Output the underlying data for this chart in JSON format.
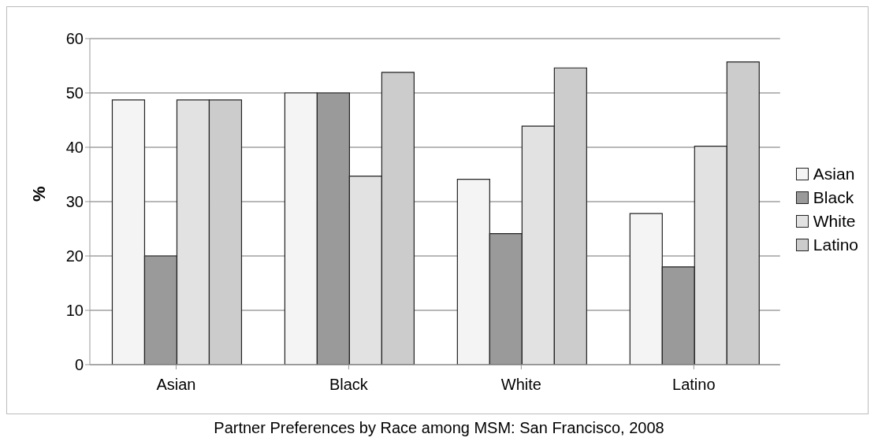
{
  "chart_data": {
    "type": "bar",
    "title": "Partner Preferences by Race among MSM: San Francisco, 2008",
    "ylabel": "%",
    "categories": [
      "Asian",
      "Black",
      "White",
      "Latino"
    ],
    "series": [
      {
        "name": "Asian",
        "color": "#f4f4f4",
        "values": [
          48.7,
          50,
          34.1,
          27.8
        ]
      },
      {
        "name": "Black",
        "color": "#9a9a9a",
        "values": [
          20,
          50,
          24.1,
          18.0
        ]
      },
      {
        "name": "White",
        "color": "#e2e2e2",
        "values": [
          48.7,
          34.7,
          43.9,
          40.2
        ]
      },
      {
        "name": "Latino",
        "color": "#cccccc",
        "values": [
          48.7,
          53.8,
          54.6,
          55.7
        ]
      }
    ],
    "ylim": [
      0,
      60
    ],
    "yticks": [
      0,
      10,
      20,
      30,
      40,
      50,
      60
    ],
    "grid": "y",
    "legend": "right"
  }
}
